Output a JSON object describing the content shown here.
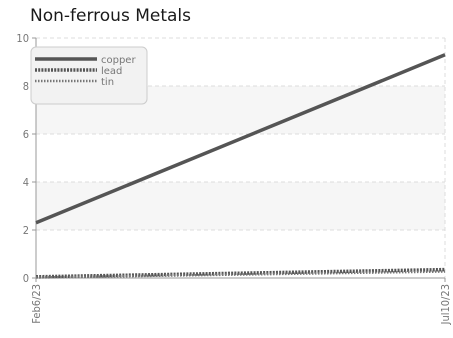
{
  "chart_data": {
    "type": "line",
    "title": "Non-ferrous Metals",
    "xlabel": "",
    "ylabel": "",
    "x": [
      "Feb6/23",
      "Jul10/23"
    ],
    "x_tick_labels": [
      "Feb6/23",
      "Jul10/23"
    ],
    "ylim": [
      0,
      10
    ],
    "y_ticks": [
      0,
      2,
      4,
      6,
      8,
      10
    ],
    "grid": true,
    "legend_position": "top-left",
    "series": [
      {
        "name": "copper",
        "values": [
          2.3,
          9.3
        ],
        "color": "#555555",
        "style": "solid"
      },
      {
        "name": "lead",
        "values": [
          0.05,
          0.35
        ],
        "color": "#555555",
        "style": "dashed"
      },
      {
        "name": "tin",
        "values": [
          0.02,
          0.27
        ],
        "color": "#777777",
        "style": "dotted"
      }
    ]
  }
}
